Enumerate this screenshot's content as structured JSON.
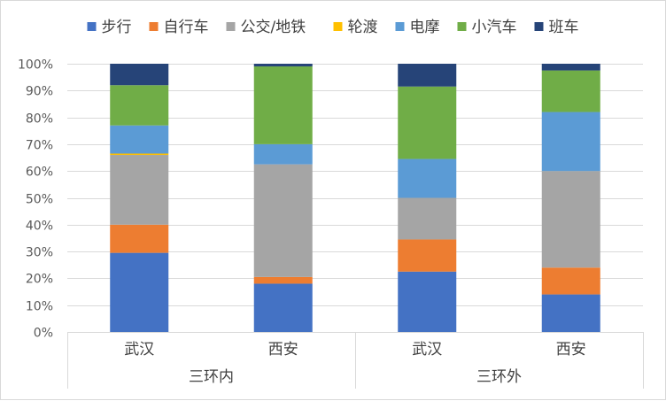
{
  "chart_data": {
    "type": "bar",
    "stacked": "percent",
    "categories": [
      "武汉",
      "西安",
      "武汉",
      "西安"
    ],
    "groups": [
      {
        "label": "三环内",
        "categories": [
          0,
          1
        ]
      },
      {
        "label": "三环外",
        "categories": [
          2,
          3
        ]
      }
    ],
    "series": [
      {
        "name": "步行",
        "color": "#4472c4",
        "values": [
          29.5,
          18.0,
          22.5,
          14.0
        ]
      },
      {
        "name": "自行车",
        "color": "#ed7d31",
        "values": [
          10.5,
          2.5,
          12.0,
          10.0
        ]
      },
      {
        "name": "公交/地铁",
        "color": "#a5a5a5",
        "values": [
          26.0,
          42.0,
          15.5,
          36.0
        ]
      },
      {
        "name": "轮渡",
        "color": "#ffc000",
        "values": [
          0.5,
          0.0,
          0.0,
          0.0
        ]
      },
      {
        "name": "电摩",
        "color": "#5b9bd5",
        "values": [
          10.5,
          7.5,
          14.5,
          22.0
        ]
      },
      {
        "name": "小汽车",
        "color": "#70ad47",
        "values": [
          15.0,
          29.0,
          27.0,
          15.5
        ]
      },
      {
        "name": "班车",
        "color": "#264478",
        "values": [
          8.0,
          1.0,
          8.5,
          2.5
        ]
      }
    ],
    "y_ticks": [
      "0%",
      "10%",
      "20%",
      "30%",
      "40%",
      "50%",
      "60%",
      "70%",
      "80%",
      "90%",
      "100%"
    ],
    "ylim": [
      0,
      100
    ],
    "grid": true,
    "legend": "top"
  }
}
